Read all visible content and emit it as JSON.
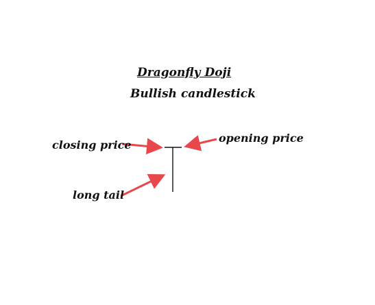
{
  "title": "Dragonfly Doji",
  "subtitle": "Bullish candlestick",
  "labels": {
    "closing_price": "closing price",
    "opening_price": "opening price",
    "long_tail": "long tail"
  },
  "colors": {
    "arrow": "#e8474b",
    "candle": "#111111",
    "text": "#111111"
  }
}
